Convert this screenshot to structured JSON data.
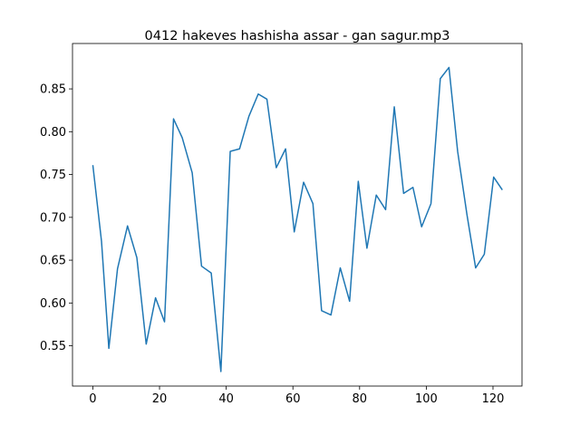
{
  "chart_data": {
    "type": "line",
    "title": "0412 hakeves hashisha assar - gan sagur.mp3",
    "x": [
      0,
      2.6,
      4.8,
      7.4,
      10.4,
      13.2,
      16,
      18.8,
      21.5,
      24.2,
      26.8,
      29.8,
      32.6,
      35.5,
      38.4,
      41.2,
      44,
      46.8,
      49.6,
      52.2,
      55,
      57.8,
      60.4,
      63.2,
      66,
      68.6,
      71.4,
      74.2,
      77,
      79.6,
      82.2,
      85,
      87.8,
      90.4,
      93.2,
      96,
      98.6,
      101.4,
      104.2,
      106.8,
      109.4,
      112.2,
      114.8,
      117.4,
      120.2,
      122.8
    ],
    "series": [
      {
        "color": "#1f77b4",
        "values": [
          0.761,
          0.672,
          0.547,
          0.64,
          0.69,
          0.653,
          0.552,
          0.606,
          0.578,
          0.815,
          0.793,
          0.752,
          0.643,
          0.635,
          0.52,
          0.777,
          0.78,
          0.818,
          0.844,
          0.838,
          0.758,
          0.78,
          0.683,
          0.741,
          0.716,
          0.591,
          0.586,
          0.641,
          0.602,
          0.742,
          0.664,
          0.726,
          0.709,
          0.829,
          0.728,
          0.735,
          0.689,
          0.716,
          0.862,
          0.875,
          0.777,
          0.703,
          0.641,
          0.657,
          0.747,
          0.732
        ]
      }
    ],
    "xlim": [
      -6.1,
      128.7
    ],
    "ylim": [
      0.503,
      0.903
    ],
    "xticks": [
      0,
      20,
      40,
      60,
      80,
      100,
      120
    ],
    "yticks": [
      0.55,
      {
        "value": 0.6,
        "label": "0.60"
      },
      0.65,
      {
        "value": 0.7,
        "label": "0.70"
      },
      0.75,
      {
        "value": 0.8,
        "label": "0.80"
      },
      0.85
    ]
  }
}
